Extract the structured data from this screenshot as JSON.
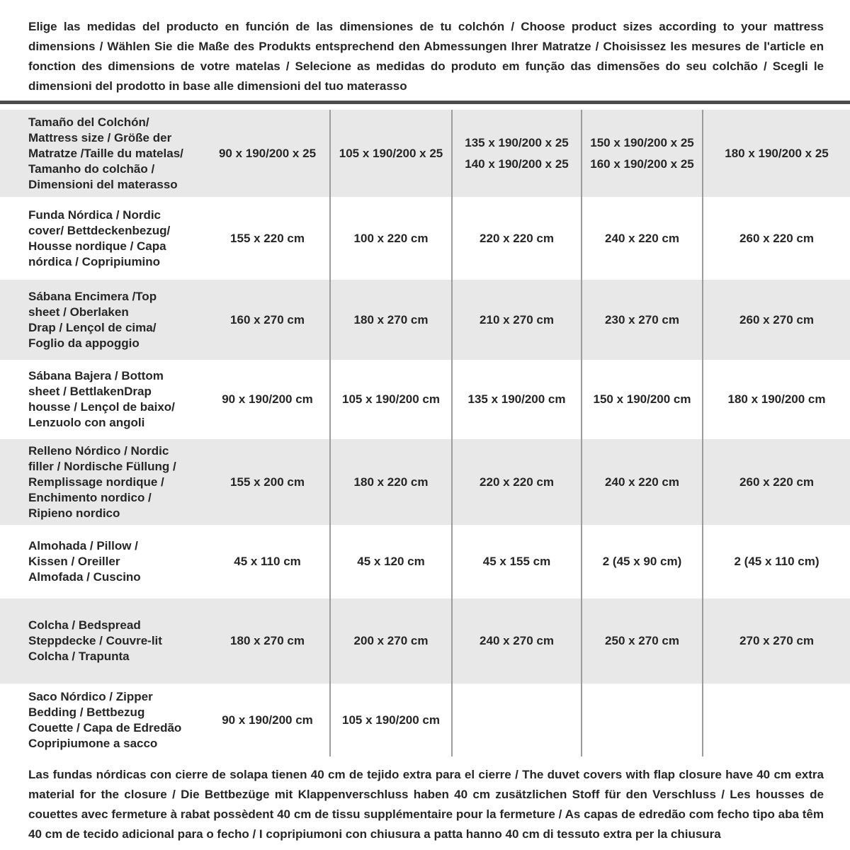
{
  "intro": "Elige las medidas del producto en función de las dimensiones de tu colchón / Choose product sizes according to your mattress dimensions / Wählen Sie die Maße des Produkts entsprechend den Abmessungen Ihrer Matratze / Choisissez les mesures de l'article en fonction des dimensions de votre matelas / Selecione as medidas do produto em função das dimensões do seu colchão / Scegli le dimensioni del prodotto in base alle dimensioni del tuo materasso",
  "table": {
    "rows": [
      {
        "label": "Tamaño del Colchón/\nMattress size / Größe der\nMatratze /Taille du matelas/\nTamanho do colchão /\nDimensioni del materasso",
        "values": [
          "90 x 190/200 x 25",
          "105 x 190/200 x 25",
          "135 x 190/200 x 25\n140 x 190/200 x 25",
          "150 x 190/200 x 25\n160 x 190/200 x 25",
          "180 x 190/200 x 25"
        ]
      },
      {
        "label": "Funda Nórdica /  Nordic\ncover/ Bettdeckenbezug/\nHousse nordique  / Capa\nnórdica / Copripiumino",
        "values": [
          "155 x 220 cm",
          "100 x 220 cm",
          "220 x 220 cm",
          "240 x 220 cm",
          "260 x 220 cm"
        ]
      },
      {
        "label": "Sábana Encimera /Top\nsheet / Oberlaken\nDrap / Lençol de cima/\nFoglio da appoggio",
        "values": [
          "160 x 270 cm",
          "180 x 270 cm",
          "210 x 270 cm",
          "230 x 270 cm",
          "260 x 270 cm"
        ]
      },
      {
        "label": "Sábana Bajera / Bottom\nsheet / BettlakenDrap\nhousse / Lençol de baixo/\nLenzuolo con angoli",
        "values": [
          "90 x 190/200 cm",
          "105 x 190/200 cm",
          "135 x 190/200 cm",
          "150 x 190/200 cm",
          "180 x 190/200 cm"
        ]
      },
      {
        "label": "Relleno Nórdico / Nordic\nfiller / Nordische Füllung /\nRemplissage nordique /\nEnchimento nordico /\nRipieno nordico",
        "values": [
          "155 x 200 cm",
          "180 x 220 cm",
          "220 x 220 cm",
          "240 x 220 cm",
          "260 x 220 cm"
        ]
      },
      {
        "label": "Almohada  / Pillow /\nKissen / Oreiller\nAlmofada / Cuscino",
        "values": [
          "45 x 110 cm",
          "45 x 120 cm",
          "45 x 155 cm",
          "2 (45 x 90 cm)",
          "2 (45 x 110 cm)"
        ]
      },
      {
        "label": "Colcha / Bedspread\nSteppdecke / Couvre-lit\nColcha / Trapunta",
        "values": [
          "180 x 270 cm",
          "200 x 270 cm",
          "240 x 270 cm",
          "250 x 270 cm",
          "270 x 270 cm"
        ]
      },
      {
        "label": "Saco Nórdico / Zipper\nBedding / Bettbezug\nCouette  / Capa de Edredão\nCopripiumone a sacco",
        "values": [
          "90 x 190/200 cm",
          "105 x 190/200 cm",
          "",
          "",
          ""
        ]
      }
    ]
  },
  "footnote": "Las fundas nórdicas con cierre de solapa tienen 40 cm de tejido extra para el cierre  / The duvet covers with flap closure have 40 cm extra material for the closure / Die Bettbezüge mit Klappenverschluss haben 40 cm zusätzlichen Stoff für den Verschluss / Les housses de couettes avec fermeture à rabat possèdent 40 cm de tissu supplémentaire pour la fermeture / As capas de edredão com fecho tipo aba têm 40 cm de tecido adicional para o fecho / I copripiumoni con chiusura a patta hanno 40 cm di tessuto extra per la chiusura",
  "colors": {
    "row_shade": "#e8e8e8",
    "divider": "#9c9c9c",
    "top_rule": "#4c4c4c",
    "text": "#262626"
  }
}
